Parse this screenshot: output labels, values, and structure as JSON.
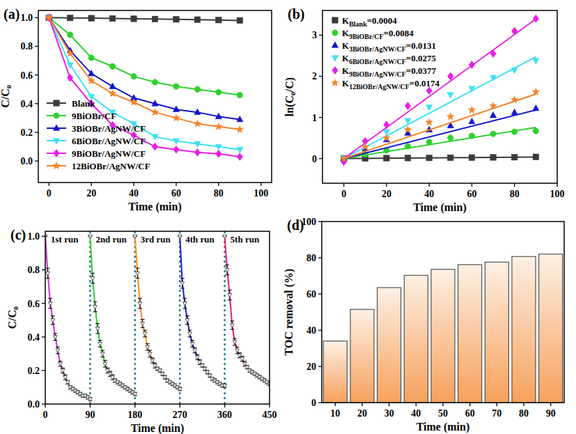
{
  "chart_data": [
    {
      "type": "line",
      "title": "(a)",
      "x_label": "Time (min)",
      "y_label": "C/C₀",
      "x": [
        0,
        10,
        20,
        30,
        40,
        50,
        60,
        70,
        80,
        90
      ],
      "xlim": [
        -5,
        105
      ],
      "xticks": [
        0,
        20,
        40,
        60,
        80,
        100
      ],
      "ylim": [
        -0.15,
        1.05
      ],
      "yticks": [
        {
          "value": 0,
          "label": "0.0"
        },
        {
          "value": 0.2,
          "label": "0.2"
        },
        {
          "value": 0.4,
          "label": "0.4"
        },
        {
          "value": 0.6,
          "label": "0.6"
        },
        {
          "value": 0.8,
          "label": "0.8"
        },
        {
          "value": 1,
          "label": "1.0"
        }
      ],
      "legend": "lower left",
      "series": [
        {
          "name": "Blank",
          "color": "#3a3a3a",
          "marker": "square",
          "values": [
            1.0,
            0.998,
            0.996,
            0.994,
            0.992,
            0.99,
            0.988,
            0.986,
            0.983,
            0.98
          ]
        },
        {
          "name": "9BiOBr/CF",
          "color": "#2fd12f",
          "marker": "circle",
          "values": [
            1.0,
            0.88,
            0.72,
            0.66,
            0.59,
            0.55,
            0.52,
            0.5,
            0.48,
            0.46
          ]
        },
        {
          "name": "3BiOBr/AgNW/CF",
          "color": "#1414c8",
          "marker": "triangle",
          "values": [
            1.0,
            0.77,
            0.61,
            0.52,
            0.44,
            0.4,
            0.36,
            0.34,
            0.31,
            0.29
          ]
        },
        {
          "name": "6BiOBr/AgNW/CF",
          "color": "#3fe0f5",
          "marker": "triangle-down",
          "values": [
            1.0,
            0.67,
            0.45,
            0.34,
            0.26,
            0.17,
            0.14,
            0.12,
            0.1,
            0.08
          ]
        },
        {
          "name": "9BiOBr/AgNW/CF",
          "color": "#e81ee8",
          "marker": "diamond",
          "values": [
            1.0,
            0.58,
            0.4,
            0.25,
            0.18,
            0.1,
            0.08,
            0.06,
            0.05,
            0.03
          ]
        },
        {
          "name": "12BiOBr/AgNW/CF",
          "color": "#f5832a",
          "marker": "star",
          "values": [
            1.0,
            0.75,
            0.56,
            0.47,
            0.41,
            0.34,
            0.3,
            0.26,
            0.24,
            0.22
          ]
        }
      ]
    },
    {
      "type": "scatter",
      "title": "(b)",
      "x_label": "Time (min)",
      "y_label": "ln(C₀/C)",
      "x": [
        0,
        10,
        20,
        30,
        40,
        50,
        60,
        70,
        80,
        90
      ],
      "xlim": [
        -10,
        100
      ],
      "xticks": [
        0,
        20,
        40,
        60,
        80,
        100
      ],
      "ylim": [
        -0.6,
        3.6
      ],
      "yticks": [
        0,
        1,
        2,
        3
      ],
      "legend": "upper left",
      "series": [
        {
          "name": "KBlank=0.0004",
          "k": 0.0004,
          "color": "#3a3a3a",
          "marker": "square",
          "values": [
            0,
            0.005,
            0.01,
            0.012,
            0.016,
            0.02,
            0.024,
            0.028,
            0.032,
            0.04
          ]
        },
        {
          "name": "K9BiOBr/CF=0.0084",
          "k": 0.0084,
          "color": "#2fd12f",
          "marker": "circle",
          "values": [
            0,
            0.1,
            0.2,
            0.3,
            0.4,
            0.5,
            0.55,
            0.6,
            0.65,
            0.67
          ]
        },
        {
          "name": "K3BiOBr/AgNW/CF=0.0131",
          "k": 0.0131,
          "color": "#1414c8",
          "marker": "triangle",
          "values": [
            0,
            0.24,
            0.46,
            0.62,
            0.7,
            0.8,
            0.9,
            1.05,
            1.12,
            1.22
          ]
        },
        {
          "name": "K6BiOBr/AgNW/CF=0.0275",
          "k": 0.0275,
          "color": "#3fe0f5",
          "marker": "triangle-down",
          "values": [
            0,
            0.4,
            0.65,
            0.92,
            1.25,
            1.55,
            1.7,
            1.97,
            2.15,
            2.38
          ]
        },
        {
          "name": "K9BiOBr/AgNW/CF=0.0377",
          "k": 0.0377,
          "color": "#e81ee8",
          "marker": "diamond",
          "values": [
            -0.08,
            0.42,
            0.82,
            1.28,
            1.65,
            2.0,
            2.28,
            2.55,
            3.1,
            3.4
          ]
        },
        {
          "name": "K12BiOBr/AgNW/CF=0.0174",
          "k": 0.0174,
          "color": "#f5832a",
          "marker": "star",
          "values": [
            0,
            0.28,
            0.5,
            0.7,
            0.88,
            1.02,
            1.18,
            1.28,
            1.43,
            1.62
          ]
        }
      ]
    },
    {
      "type": "line",
      "title": "(c)",
      "x_label": "Time (min)",
      "y_label": "C/C₀",
      "xlim": [
        0,
        450
      ],
      "xticks": [
        0,
        90,
        180,
        270,
        360,
        450
      ],
      "ylim": [
        0,
        1.03
      ],
      "yticks": [
        {
          "value": 0,
          "label": "0.0"
        },
        {
          "value": 0.2,
          "label": "0.2"
        },
        {
          "value": 0.4,
          "label": "0.4"
        },
        {
          "value": 0.6,
          "label": "0.6"
        },
        {
          "value": 0.8,
          "label": "0.8"
        },
        {
          "value": 1,
          "label": "1.0"
        }
      ],
      "run_boundaries": [
        90,
        180,
        270,
        360
      ],
      "annotations": [
        "1st run",
        "2nd run",
        "3rd run",
        "4th run",
        "5th run"
      ],
      "marker": "open-triangle-down",
      "series": [
        {
          "color": "#cc33cc",
          "x": [
            0,
            5,
            10,
            15,
            20,
            25,
            30,
            35,
            40,
            45,
            50,
            55,
            60,
            65,
            70,
            75,
            80,
            85,
            90
          ],
          "values": [
            1.0,
            0.78,
            0.6,
            0.5,
            0.4,
            0.32,
            0.24,
            0.2,
            0.16,
            0.13,
            0.1,
            0.09,
            0.08,
            0.07,
            0.06,
            0.05,
            0.05,
            0.04,
            0.03
          ],
          "errors": [
            0,
            0.03,
            0.03,
            0.025,
            0.02,
            0.02,
            0.015,
            0.015,
            0.015,
            0.01,
            0.01,
            0.01,
            0.01,
            0.01,
            0.01,
            0.01,
            0.01,
            0.01,
            0.01
          ]
        },
        {
          "color": "#33cc33",
          "x": [
            90,
            95,
            100,
            105,
            110,
            115,
            120,
            125,
            130,
            135,
            140,
            145,
            150,
            155,
            160,
            165,
            170,
            175,
            180
          ],
          "values": [
            1.0,
            0.75,
            0.58,
            0.45,
            0.36,
            0.3,
            0.24,
            0.2,
            0.18,
            0.16,
            0.14,
            0.13,
            0.12,
            0.11,
            0.1,
            0.09,
            0.08,
            0.07,
            0.06
          ],
          "errors": [
            0,
            0.03,
            0.03,
            0.03,
            0.02,
            0.02,
            0.02,
            0.015,
            0.015,
            0.015,
            0.01,
            0.01,
            0.01,
            0.01,
            0.01,
            0.01,
            0.01,
            0.01,
            0.01
          ]
        },
        {
          "color": "#ff8c1a",
          "x": [
            180,
            185,
            190,
            195,
            200,
            205,
            210,
            215,
            220,
            225,
            230,
            235,
            240,
            245,
            250,
            255,
            260,
            265,
            270
          ],
          "values": [
            1.0,
            0.78,
            0.6,
            0.48,
            0.42,
            0.34,
            0.3,
            0.26,
            0.23,
            0.21,
            0.2,
            0.18,
            0.16,
            0.14,
            0.13,
            0.12,
            0.11,
            0.1,
            0.09
          ],
          "errors": [
            0,
            0.03,
            0.03,
            0.025,
            0.02,
            0.02,
            0.02,
            0.015,
            0.015,
            0.01,
            0.01,
            0.01,
            0.01,
            0.01,
            0.01,
            0.01,
            0.01,
            0.01,
            0.01
          ]
        },
        {
          "color": "#1a1acc",
          "x": [
            270,
            275,
            280,
            285,
            290,
            295,
            300,
            305,
            310,
            315,
            320,
            325,
            330,
            335,
            340,
            345,
            350,
            355,
            360
          ],
          "values": [
            1.0,
            0.72,
            0.6,
            0.5,
            0.42,
            0.36,
            0.32,
            0.28,
            0.25,
            0.23,
            0.21,
            0.19,
            0.17,
            0.15,
            0.14,
            0.13,
            0.12,
            0.11,
            0.11
          ],
          "errors": [
            0,
            0.03,
            0.03,
            0.025,
            0.02,
            0.02,
            0.015,
            0.015,
            0.015,
            0.01,
            0.01,
            0.01,
            0.01,
            0.01,
            0.01,
            0.01,
            0.01,
            0.01,
            0.01
          ]
        },
        {
          "color": "#e0206a",
          "x": [
            360,
            365,
            370,
            375,
            380,
            385,
            390,
            395,
            400,
            405,
            410,
            415,
            420,
            425,
            430,
            435,
            440,
            445,
            450
          ],
          "values": [
            1.0,
            0.8,
            0.65,
            0.47,
            0.37,
            0.32,
            0.29,
            0.27,
            0.24,
            0.22,
            0.2,
            0.19,
            0.18,
            0.17,
            0.16,
            0.15,
            0.14,
            0.13,
            0.12
          ],
          "errors": [
            0,
            0.03,
            0.03,
            0.025,
            0.02,
            0.02,
            0.015,
            0.015,
            0.015,
            0.01,
            0.01,
            0.01,
            0.01,
            0.01,
            0.01,
            0.01,
            0.01,
            0.01,
            0.01
          ]
        }
      ]
    },
    {
      "type": "bar",
      "title": "(d)",
      "x_label": "Time (min)",
      "y_label": "TOC removal (%)",
      "categories": [
        "10",
        "20",
        "30",
        "40",
        "50",
        "60",
        "70",
        "80",
        "90"
      ],
      "values": [
        34,
        51.5,
        63.5,
        70.3,
        73.6,
        76.2,
        77.6,
        80.7,
        82
      ],
      "color": "#f7a15c",
      "ylim": [
        0,
        100
      ],
      "yticks": [
        0,
        20,
        40,
        60,
        80,
        100
      ]
    }
  ]
}
